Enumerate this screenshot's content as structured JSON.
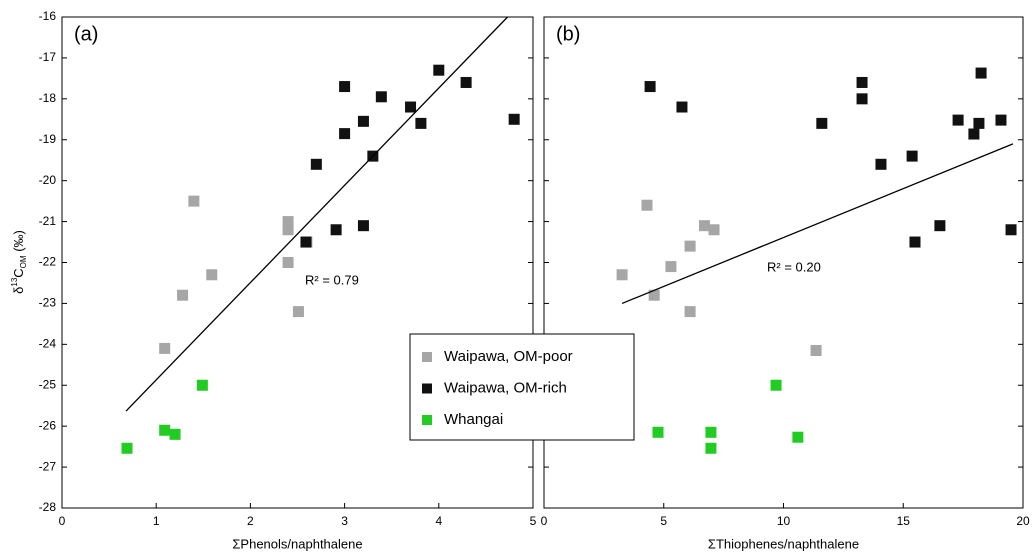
{
  "chart_data": [
    {
      "type": "scatter",
      "panel_label": "(a)",
      "xlabel": "ΣPhenols/naphthalene",
      "ylabel": [
        "δ",
        "13",
        "C",
        "OM",
        " (‰)"
      ],
      "xlim": [
        0,
        5
      ],
      "xticks": [
        0,
        1,
        2,
        3,
        4,
        5
      ],
      "ylim": [
        -28,
        -16
      ],
      "yticks": [
        -28,
        -27,
        -26,
        -25,
        -24,
        -23,
        -22,
        -21,
        -20,
        -19,
        -18,
        -17,
        -16
      ],
      "series": [
        {
          "name": "Waipawa, OM-poor",
          "color": "#a6a6a6",
          "x": [
            1.4,
            1.28,
            1.59,
            1.09,
            2.4,
            2.4,
            2.4,
            2.51,
            2.6
          ],
          "values": [
            -20.5,
            -22.8,
            -22.3,
            -24.1,
            -21.0,
            -21.2,
            -22.0,
            -23.2,
            -21.5
          ]
        },
        {
          "name": "Waipawa, OM-rich",
          "color": "#111111",
          "x": [
            3.0,
            4.0,
            4.29,
            3.39,
            3.7,
            3.2,
            3.81,
            4.8,
            3.0,
            3.3,
            2.7,
            2.59,
            2.91,
            3.2
          ],
          "values": [
            -17.7,
            -17.3,
            -17.6,
            -17.95,
            -18.2,
            -18.55,
            -18.6,
            -18.5,
            -18.85,
            -19.4,
            -19.6,
            -21.5,
            -21.2,
            -21.1
          ]
        },
        {
          "name": "Whangai",
          "color": "#22cc22",
          "x": [
            0.69,
            1.09,
            1.2,
            1.49
          ],
          "values": [
            -26.54,
            -26.1,
            -26.2,
            -25.0
          ]
        }
      ],
      "trendline": {
        "x": [
          0.68,
          4.73
        ],
        "values": [
          -25.63,
          -16.0
        ]
      },
      "annotation": "R² = 0.79"
    },
    {
      "type": "scatter",
      "panel_label": "(b)",
      "xlabel": "ΣThiophenes/naphthalene",
      "xlim": [
        0,
        20
      ],
      "xticks": [
        0,
        5,
        10,
        15,
        20
      ],
      "ylim": [
        -28,
        -16
      ],
      "yticks": [
        -28,
        -27,
        -26,
        -25,
        -24,
        -23,
        -22,
        -21,
        -20,
        -19,
        -18,
        -17,
        -16
      ],
      "series": [
        {
          "color": "#a6a6a6",
          "x": [
            3.26,
            4.3,
            4.6,
            5.3,
            6.1,
            6.7,
            7.1,
            6.1,
            11.36
          ],
          "values": [
            -22.3,
            -20.6,
            -22.8,
            -22.1,
            -21.6,
            -21.1,
            -21.2,
            -23.2,
            -24.15
          ]
        },
        {
          "color": "#111111",
          "x": [
            4.43,
            5.76,
            13.28,
            13.28,
            11.6,
            14.07,
            15.37,
            15.49,
            17.29,
            18.25,
            18.16,
            17.95,
            19.08,
            16.53,
            19.5
          ],
          "values": [
            -17.7,
            -18.2,
            -17.6,
            -18.0,
            -18.6,
            -19.6,
            -19.4,
            -21.5,
            -18.52,
            -17.37,
            -18.6,
            -18.86,
            -18.52,
            -21.1,
            -21.2
          ]
        },
        {
          "color": "#22cc22",
          "x": [
            4.76,
            6.97,
            6.97,
            9.69,
            10.6
          ],
          "values": [
            -26.15,
            -26.15,
            -26.54,
            -25.0,
            -26.27
          ]
        }
      ],
      "trendline": {
        "x": [
          3.26,
          19.58
        ],
        "values": [
          -23.0,
          -19.1
        ]
      },
      "annotation": "R² = 0.20"
    }
  ]
}
